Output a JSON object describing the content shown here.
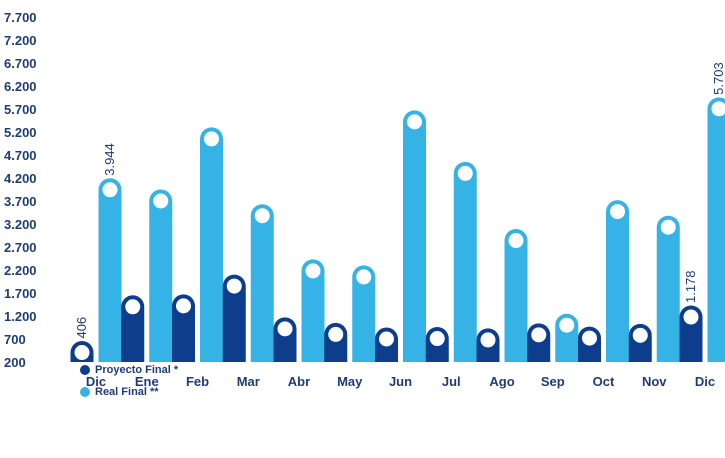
{
  "chart_data": {
    "type": "bar",
    "categories": [
      "Dic",
      "Ene",
      "Feb",
      "Mar",
      "Abr",
      "May",
      "Jun",
      "Jul",
      "Ago",
      "Sep",
      "Oct",
      "Nov",
      "Dic"
    ],
    "series": [
      {
        "name": "Proyecto Final *",
        "color": "#0d3d8c",
        "values": [
          406,
          1400,
          1420,
          1850,
          920,
          800,
          700,
          710,
          680,
          790,
          720,
          780,
          1178
        ]
      },
      {
        "name": "Real Final **",
        "color": "#36b3e6",
        "values": [
          3944,
          3700,
          5050,
          3380,
          2180,
          2050,
          5420,
          4300,
          2840,
          1000,
          3470,
          3130,
          5703
        ]
      }
    ],
    "yticks": [
      "7.700",
      "7.200",
      "6.700",
      "6.200",
      "5.700",
      "5.200",
      "4.700",
      "4.200",
      "3.700",
      "3.200",
      "2.700",
      "2.200",
      "1.700",
      "1.200",
      "700",
      "200"
    ],
    "ylim": [
      200,
      7700
    ],
    "data_labels": [
      {
        "series": 0,
        "index": 0,
        "text": "406"
      },
      {
        "series": 1,
        "index": 0,
        "text": "3.944"
      },
      {
        "series": 0,
        "index": 12,
        "text": "1.178"
      },
      {
        "series": 1,
        "index": 12,
        "text": "5.703"
      }
    ],
    "grid": false,
    "legend_position": "bottom-left"
  }
}
